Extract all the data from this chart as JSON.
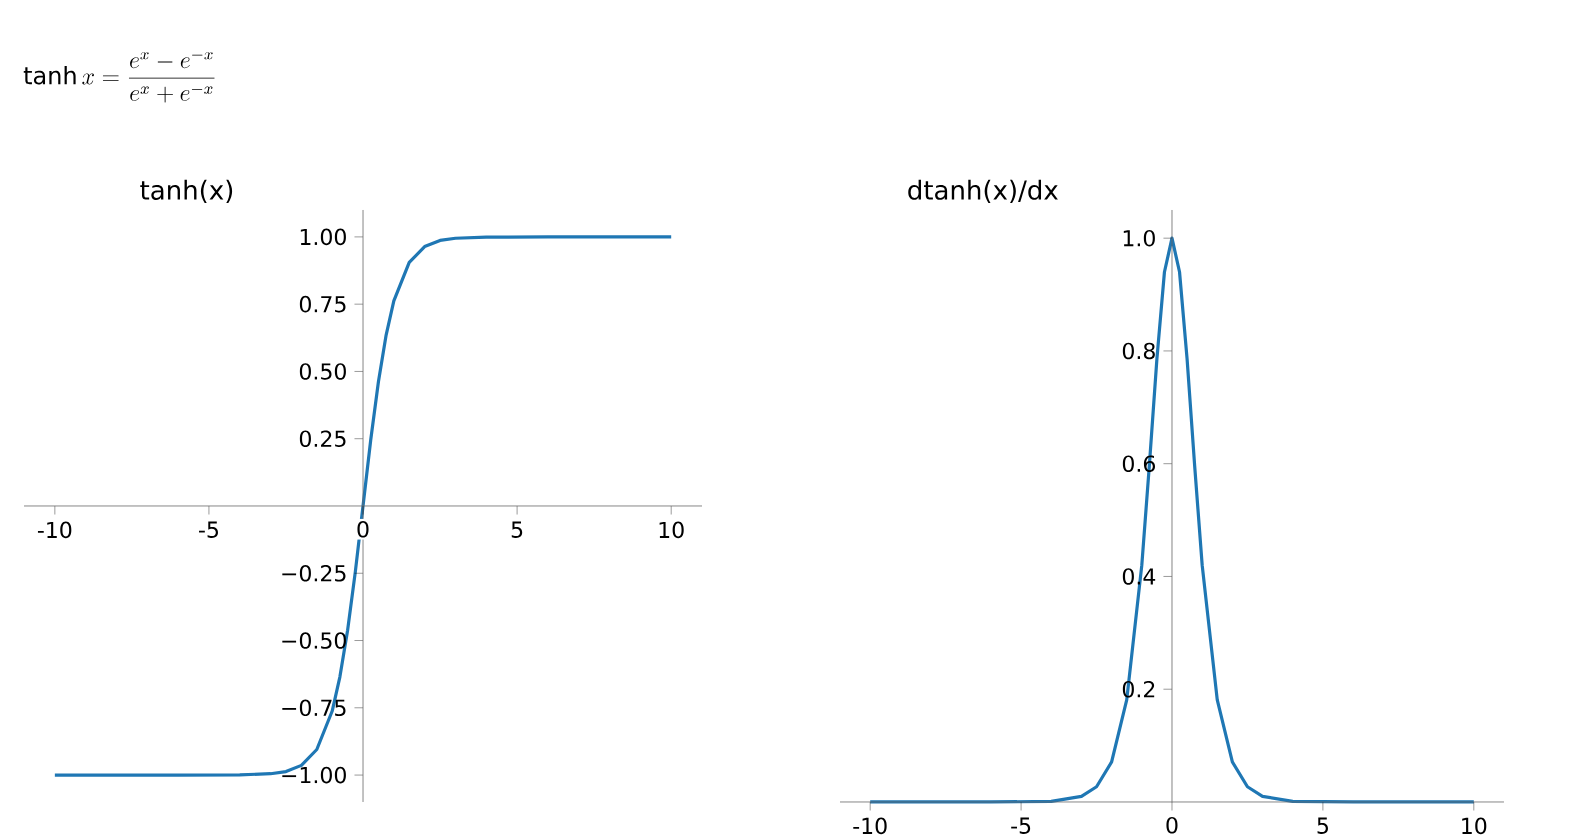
{
  "chart_data": [
    {
      "type": "line",
      "title": "tanh(x)",
      "annotations": [
        "\\tanh x = \\frac{e^x - e^{-x}}{e^x + e^{-x}}"
      ],
      "xlim": [
        -11,
        11
      ],
      "ylim": [
        -1.1,
        1.1
      ],
      "xticks": [
        -10,
        -5,
        0,
        5,
        10
      ],
      "yticks": [
        {
          "value": -1,
          "label": "−1.00"
        },
        {
          "value": -0.75,
          "label": "−0.75"
        },
        {
          "value": -0.5,
          "label": "−0.50"
        },
        {
          "value": -0.25,
          "label": "−0.25"
        },
        {
          "value": 0.25,
          "label": "0.25"
        },
        {
          "value": 0.5,
          "label": "0.50"
        },
        {
          "value": 0.75,
          "label": "0.75"
        },
        {
          "value": 1,
          "label": "1.00"
        }
      ],
      "x": [
        -10,
        -8,
        -6,
        -4,
        -3,
        -2.5,
        -2,
        -1.5,
        -1,
        -0.75,
        -0.5,
        -0.25,
        0,
        0.25,
        0.5,
        0.75,
        1,
        1.5,
        2,
        2.5,
        3,
        4,
        6,
        8,
        10
      ],
      "series": [
        {
          "color": "#1f77b4",
          "values": [
            -1.0,
            -1.0,
            -1.0,
            -0.999,
            -0.995,
            -0.987,
            -0.964,
            -0.905,
            -0.762,
            -0.635,
            -0.462,
            -0.245,
            0,
            0.245,
            0.462,
            0.635,
            0.762,
            0.905,
            0.964,
            0.987,
            0.995,
            0.999,
            1.0,
            1.0,
            1.0
          ]
        }
      ]
    },
    {
      "type": "line",
      "title": "dtanh(x)/dx",
      "xlim": [
        -11,
        11
      ],
      "ylim": [
        0,
        1.05
      ],
      "xticks": [
        -10,
        -5,
        0,
        5,
        10
      ],
      "yticks": [
        {
          "value": 0.2,
          "label": "0.2"
        },
        {
          "value": 0.4,
          "label": "0.4"
        },
        {
          "value": 0.6,
          "label": "0.6"
        },
        {
          "value": 0.8,
          "label": "0.8"
        },
        {
          "value": 1.0,
          "label": "1.0"
        }
      ],
      "x": [
        -10,
        -8,
        -6,
        -4,
        -3,
        -2.5,
        -2,
        -1.5,
        -1,
        -0.75,
        -0.5,
        -0.25,
        0,
        0.25,
        0.5,
        0.75,
        1,
        1.5,
        2,
        2.5,
        3,
        4,
        6,
        8,
        10
      ],
      "series": [
        {
          "color": "#1f77b4",
          "values": [
            0,
            0,
            0,
            0.001,
            0.01,
            0.027,
            0.071,
            0.181,
            0.42,
            0.597,
            0.786,
            0.94,
            1.0,
            0.94,
            0.786,
            0.597,
            0.42,
            0.181,
            0.071,
            0.027,
            0.01,
            0.001,
            0,
            0,
            0
          ]
        }
      ]
    }
  ]
}
